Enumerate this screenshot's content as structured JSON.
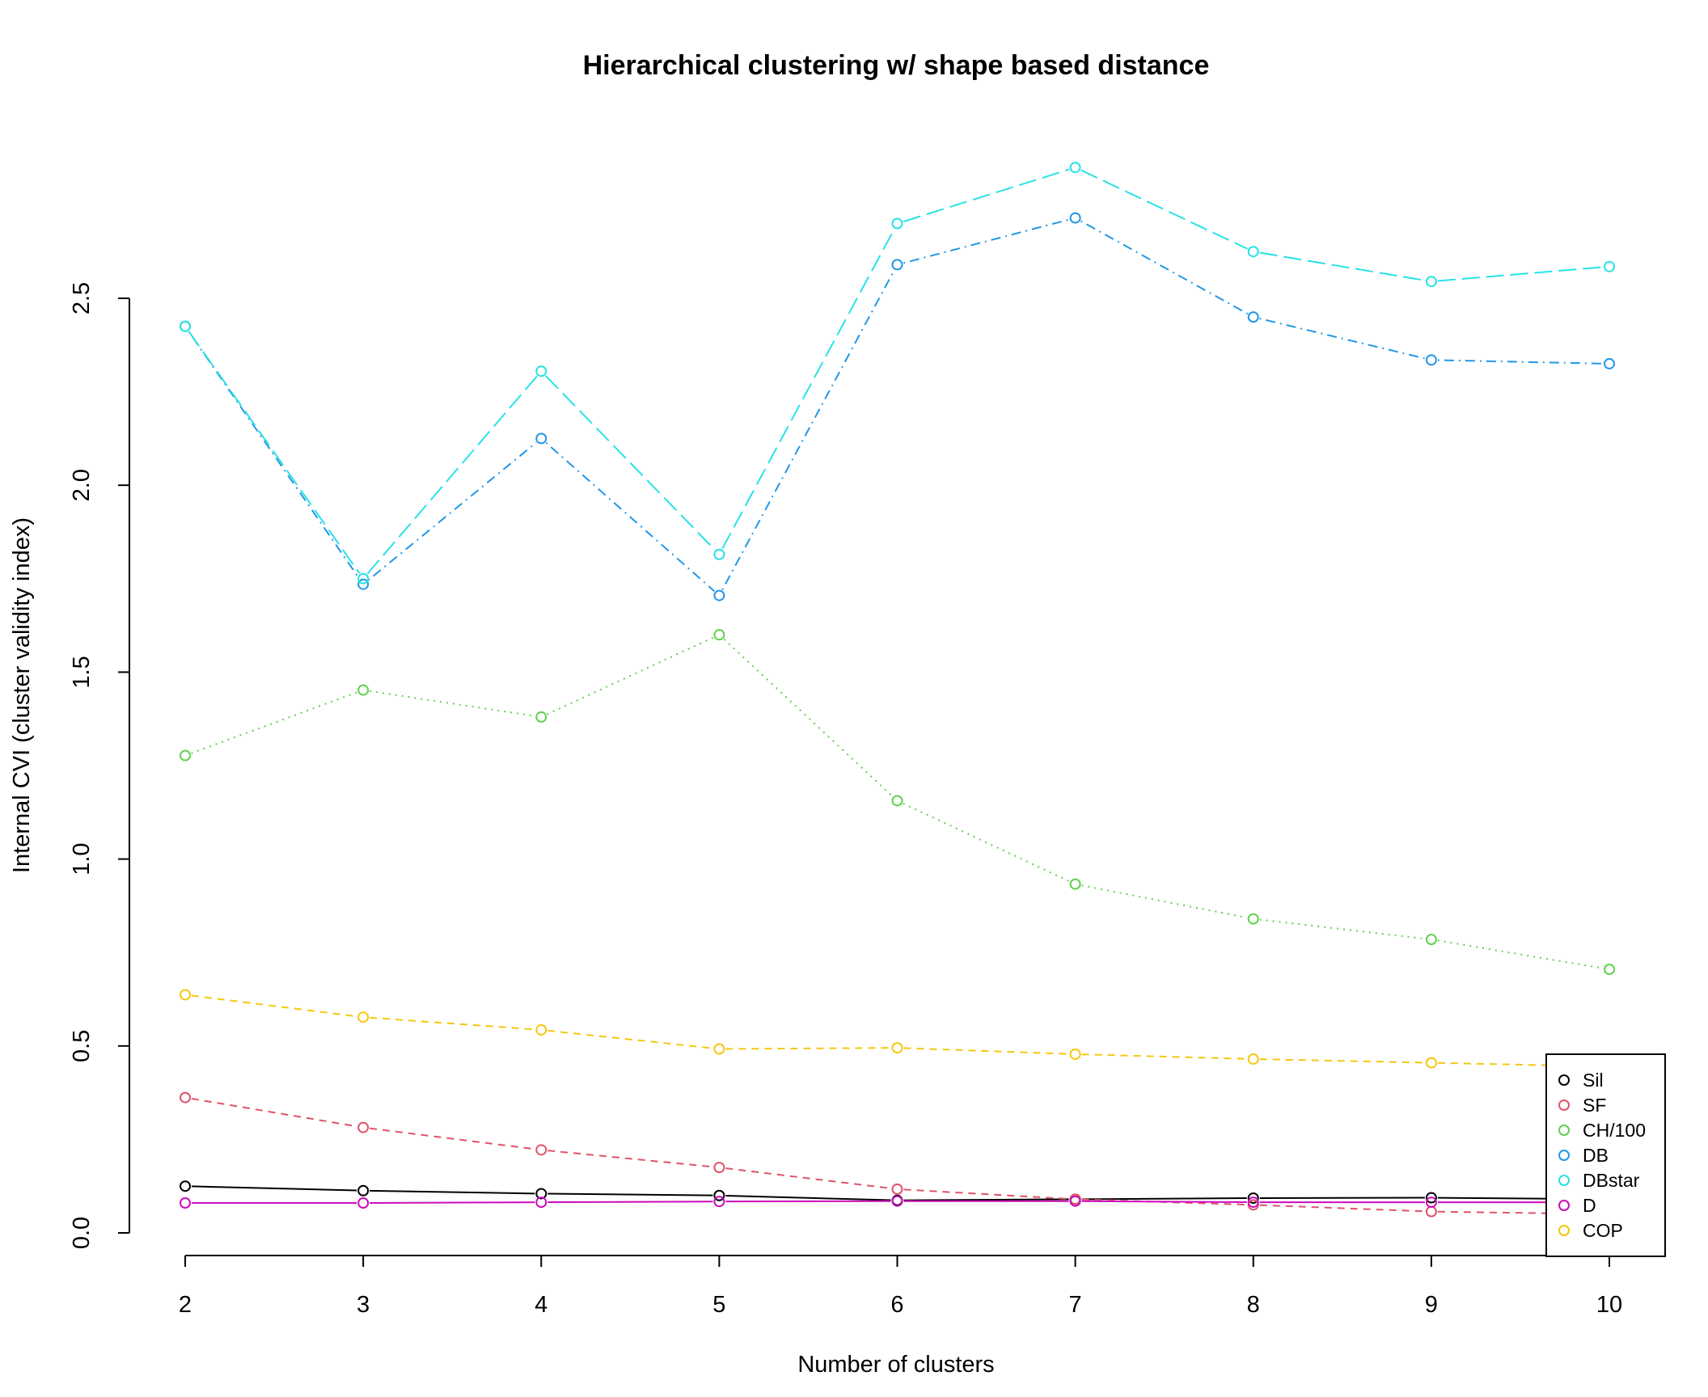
{
  "chart_data": {
    "type": "line",
    "title": "Hierarchical clustering w/ shape based distance",
    "xlabel": "Number of clusters",
    "ylabel": "Internal CVI (cluster validity index)",
    "x": [
      2,
      3,
      4,
      5,
      6,
      7,
      8,
      9,
      10
    ],
    "x_ticks": [
      "2",
      "3",
      "4",
      "5",
      "6",
      "7",
      "8",
      "9",
      "10"
    ],
    "y_ticks": [
      "0.0",
      "0.5",
      "1.0",
      "1.5",
      "2.0",
      "2.5"
    ],
    "xlim": [
      2,
      10
    ],
    "ylim": [
      0,
      2.5
    ],
    "grid": false,
    "legend_position": "bottom-right",
    "series": [
      {
        "name": "Sil",
        "color": "#000000",
        "dash": "solid",
        "values": [
          0.125,
          0.113,
          0.105,
          0.1,
          0.087,
          0.09,
          0.093,
          0.094,
          0.09
        ]
      },
      {
        "name": "SF",
        "color": "#DF536B",
        "dash": "dashed",
        "values": [
          0.362,
          0.282,
          0.222,
          0.175,
          0.117,
          0.09,
          0.075,
          0.057,
          0.05
        ]
      },
      {
        "name": "CH/100",
        "color": "#61D04F",
        "dash": "dotted",
        "values": [
          1.277,
          1.452,
          1.38,
          1.6,
          1.156,
          0.933,
          0.84,
          0.785,
          0.705
        ]
      },
      {
        "name": "DB",
        "color": "#2297E6",
        "dash": "dotdash",
        "values": [
          2.425,
          1.735,
          2.125,
          1.705,
          2.59,
          2.715,
          2.45,
          2.335,
          2.325
        ]
      },
      {
        "name": "DBstar",
        "color": "#28E2E5",
        "dash": "longdash",
        "values": [
          2.425,
          1.75,
          2.305,
          1.815,
          2.7,
          2.85,
          2.625,
          2.545,
          2.585
        ]
      },
      {
        "name": "D",
        "color": "#CD0BBC",
        "dash": "solid",
        "values": [
          0.08,
          0.08,
          0.082,
          0.084,
          0.085,
          0.085,
          0.082,
          0.082,
          0.082
        ]
      },
      {
        "name": "COP",
        "color": "#F5C710",
        "dash": "dashed",
        "values": [
          0.637,
          0.577,
          0.543,
          0.492,
          0.495,
          0.478,
          0.465,
          0.455,
          0.445
        ]
      }
    ]
  }
}
